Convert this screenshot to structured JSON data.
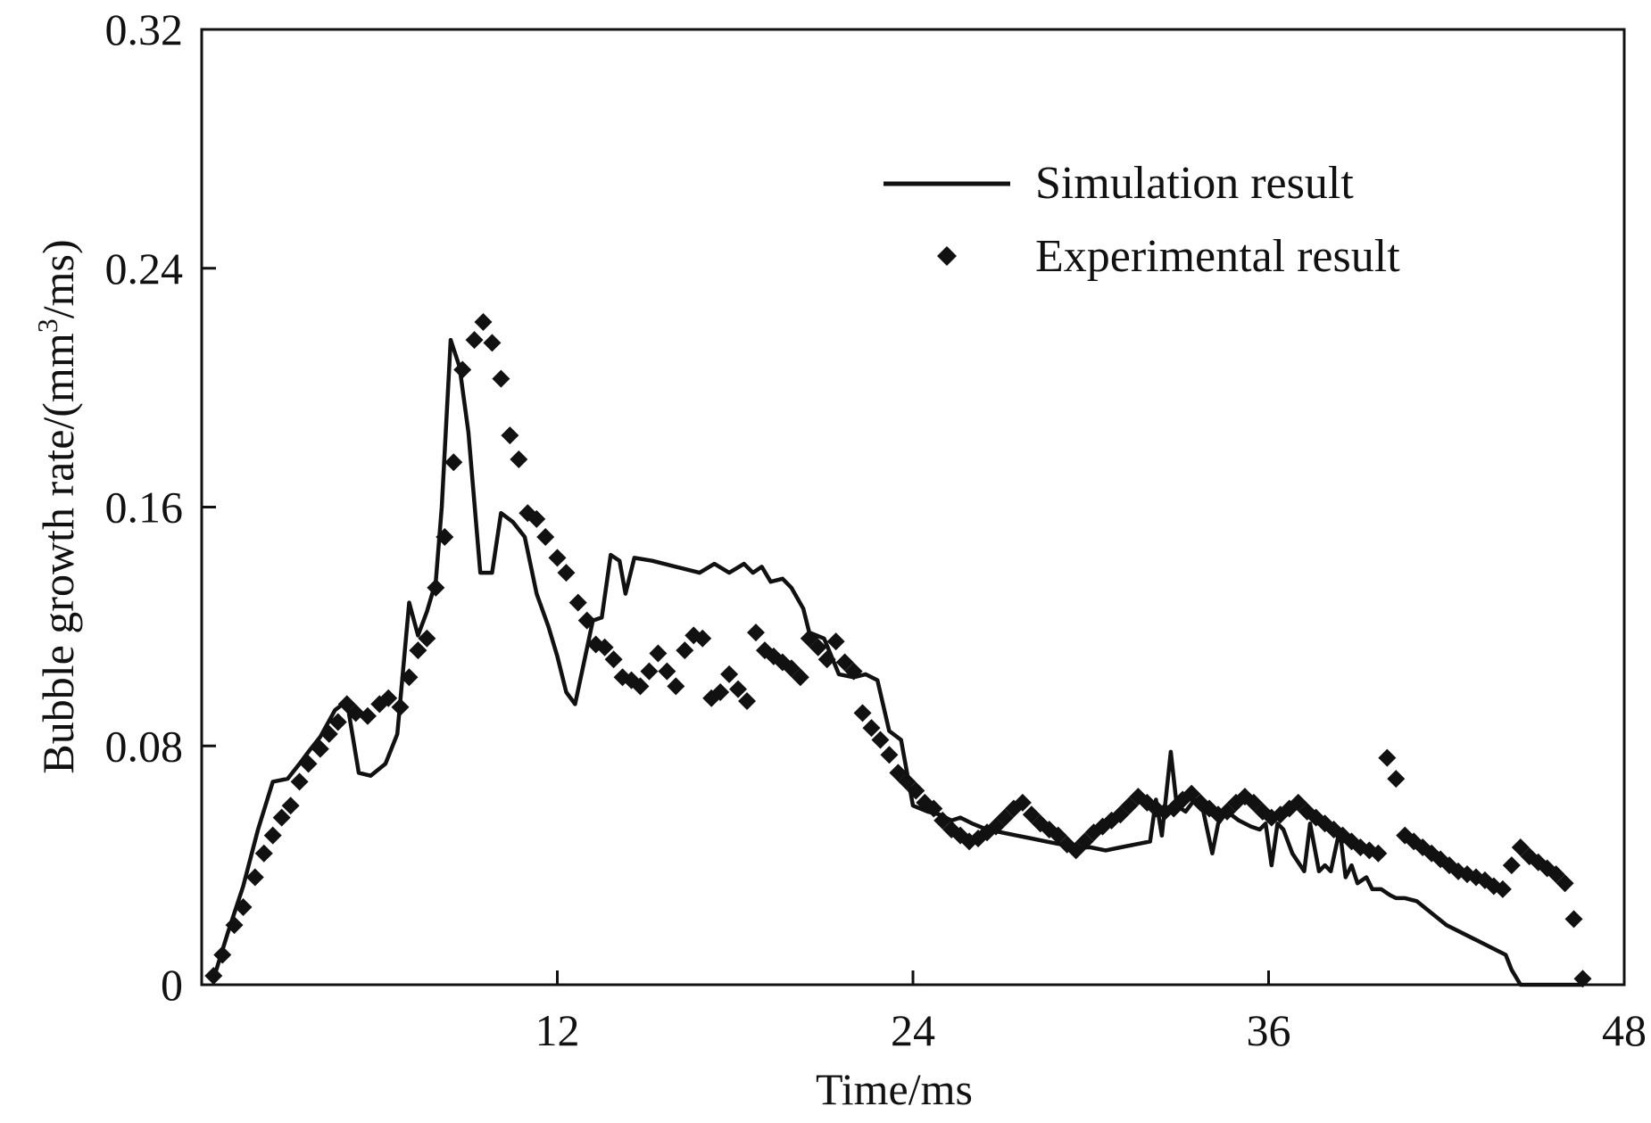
{
  "chart_data": {
    "type": "scatter",
    "title": "",
    "xlabel": "Time/ms",
    "ylabel_main": "Bubble growth rate/(mm",
    "ylabel_sup": "3",
    "ylabel_tail": "/ms)",
    "xlim": [
      0,
      48
    ],
    "ylim": [
      0,
      0.32
    ],
    "xticks": [
      12,
      24,
      36,
      48
    ],
    "xtick_labels": [
      "12",
      "24",
      "36",
      "48"
    ],
    "yticks": [
      0,
      0.08,
      0.16,
      0.24,
      0.32
    ],
    "ytick_labels": [
      "0",
      "0.08",
      "0.16",
      "0.24",
      "0.32"
    ],
    "grid": false,
    "legend_position": "top-right",
    "series": [
      {
        "name": "Simulation result",
        "kind": "line",
        "color": "#111111",
        "x": [
          0.4,
          0.9,
          1.4,
          1.9,
          2.4,
          2.9,
          3.3,
          3.6,
          4.0,
          4.5,
          4.9,
          5.3,
          5.7,
          6.2,
          6.6,
          7.0,
          7.3,
          7.6,
          7.9,
          8.1,
          8.4,
          8.7,
          9.0,
          9.4,
          9.8,
          10.1,
          10.5,
          10.9,
          11.3,
          11.7,
          12.0,
          12.3,
          12.6,
          12.9,
          13.2,
          13.5,
          13.8,
          14.1,
          14.3,
          14.6,
          15.2,
          16.0,
          16.8,
          17.3,
          17.8,
          18.3,
          18.6,
          18.9,
          19.2,
          19.6,
          19.9,
          20.3,
          20.5,
          21.0,
          21.5,
          22.0,
          22.4,
          22.8,
          23.2,
          23.6,
          24.0,
          24.5,
          24.9,
          25.3,
          25.6,
          26.0,
          26.5,
          27.0,
          27.5,
          28.0,
          28.5,
          29.0,
          29.5,
          30.0,
          30.5,
          31.0,
          31.5,
          32.0,
          32.2,
          32.4,
          32.7,
          32.9,
          33.2,
          33.5,
          33.8,
          34.1,
          34.3,
          34.6,
          35.0,
          35.4,
          35.7,
          35.9,
          36.1,
          36.3,
          36.5,
          36.8,
          37.2,
          37.4,
          37.7,
          37.9,
          38.1,
          38.4,
          38.6,
          38.8,
          39.0,
          39.3,
          39.5,
          39.8,
          40.1,
          40.3,
          40.6,
          41.0,
          42.0,
          43.0,
          44.0,
          44.2,
          44.5,
          44.8,
          45.1,
          45.4,
          45.7,
          46.0,
          46.2,
          46.4,
          46.6
        ],
        "values": [
          0.002,
          0.018,
          0.033,
          0.052,
          0.068,
          0.069,
          0.074,
          0.078,
          0.083,
          0.092,
          0.095,
          0.071,
          0.07,
          0.074,
          0.084,
          0.128,
          0.117,
          0.125,
          0.135,
          0.16,
          0.216,
          0.207,
          0.185,
          0.138,
          0.138,
          0.158,
          0.155,
          0.15,
          0.131,
          0.12,
          0.11,
          0.098,
          0.094,
          0.108,
          0.122,
          0.123,
          0.144,
          0.142,
          0.131,
          0.143,
          0.142,
          0.14,
          0.138,
          0.141,
          0.138,
          0.141,
          0.138,
          0.14,
          0.135,
          0.136,
          0.133,
          0.126,
          0.118,
          0.116,
          0.104,
          0.103,
          0.104,
          0.102,
          0.085,
          0.082,
          0.06,
          0.058,
          0.057,
          0.055,
          0.056,
          0.054,
          0.052,
          0.051,
          0.05,
          0.049,
          0.048,
          0.047,
          0.046,
          0.046,
          0.045,
          0.046,
          0.047,
          0.048,
          0.062,
          0.05,
          0.078,
          0.06,
          0.058,
          0.062,
          0.058,
          0.044,
          0.054,
          0.058,
          0.055,
          0.053,
          0.052,
          0.054,
          0.04,
          0.054,
          0.052,
          0.044,
          0.038,
          0.054,
          0.038,
          0.04,
          0.038,
          0.052,
          0.036,
          0.04,
          0.034,
          0.036,
          0.032,
          0.032,
          0.03,
          0.029,
          0.029,
          0.028,
          0.02,
          0.015,
          0.01,
          0.005,
          0.0,
          0.0,
          0.0,
          0.0,
          0.0,
          0.0,
          0.0,
          0.0,
          0.0
        ]
      },
      {
        "name": "Experimental result",
        "kind": "scatter",
        "marker": "diamond",
        "color": "#111111",
        "x": [
          0.4,
          0.7,
          1.1,
          1.4,
          1.8,
          2.1,
          2.4,
          2.7,
          3.0,
          3.3,
          3.6,
          4.0,
          4.3,
          4.6,
          4.9,
          5.2,
          5.6,
          6.0,
          6.3,
          6.7,
          7.0,
          7.3,
          7.6,
          7.9,
          8.2,
          8.5,
          8.8,
          9.2,
          9.5,
          9.8,
          10.1,
          10.4,
          10.7,
          11.0,
          11.3,
          11.6,
          12.0,
          12.3,
          12.7,
          13.0,
          13.3,
          13.6,
          13.9,
          14.2,
          14.5,
          14.8,
          15.1,
          15.4,
          15.7,
          16.0,
          16.3,
          16.6,
          16.9,
          17.2,
          17.5,
          17.8,
          18.1,
          18.4,
          18.7,
          19.0,
          19.3,
          19.6,
          19.9,
          20.2,
          20.5,
          20.8,
          21.1,
          21.4,
          21.7,
          22.0,
          22.3,
          22.6,
          22.9,
          23.2,
          23.5,
          23.8,
          24.1,
          24.4,
          24.7,
          25.0,
          25.3,
          25.6,
          25.9,
          26.2,
          26.5,
          26.8,
          27.1,
          27.4,
          27.7,
          28.0,
          28.3,
          28.6,
          28.9,
          29.2,
          29.5,
          29.8,
          30.1,
          30.4,
          30.7,
          31.0,
          31.3,
          31.6,
          31.9,
          32.2,
          32.5,
          32.8,
          33.1,
          33.4,
          33.7,
          34.0,
          34.3,
          34.6,
          34.9,
          35.2,
          35.5,
          35.8,
          36.1,
          36.4,
          36.7,
          37.0,
          37.3,
          37.6,
          37.9,
          38.2,
          38.5,
          38.8,
          39.1,
          39.4,
          39.7,
          40.0,
          40.3,
          40.6,
          40.9,
          41.2,
          41.5,
          41.8,
          42.1,
          42.4,
          42.7,
          43.0,
          43.3,
          43.6,
          43.9,
          44.2,
          44.5,
          44.8,
          45.1,
          45.4,
          45.7,
          46.0,
          46.3,
          46.6
        ],
        "values": [
          0.003,
          0.01,
          0.02,
          0.026,
          0.036,
          0.044,
          0.05,
          0.056,
          0.06,
          0.068,
          0.074,
          0.079,
          0.084,
          0.088,
          0.094,
          0.091,
          0.09,
          0.094,
          0.096,
          0.093,
          0.103,
          0.112,
          0.116,
          0.133,
          0.15,
          0.175,
          0.206,
          0.216,
          0.222,
          0.215,
          0.203,
          0.184,
          0.176,
          0.158,
          0.156,
          0.15,
          0.143,
          0.138,
          0.128,
          0.122,
          0.114,
          0.113,
          0.109,
          0.103,
          0.102,
          0.1,
          0.105,
          0.111,
          0.105,
          0.1,
          0.112,
          0.117,
          0.116,
          0.096,
          0.098,
          0.104,
          0.099,
          0.095,
          0.118,
          0.112,
          0.11,
          0.108,
          0.106,
          0.103,
          0.116,
          0.113,
          0.109,
          0.115,
          0.108,
          0.105,
          0.091,
          0.086,
          0.082,
          0.077,
          0.071,
          0.068,
          0.065,
          0.061,
          0.059,
          0.055,
          0.052,
          0.05,
          0.048,
          0.049,
          0.051,
          0.053,
          0.056,
          0.059,
          0.061,
          0.057,
          0.054,
          0.052,
          0.05,
          0.047,
          0.045,
          0.048,
          0.051,
          0.053,
          0.055,
          0.057,
          0.06,
          0.063,
          0.061,
          0.059,
          0.058,
          0.059,
          0.062,
          0.064,
          0.061,
          0.059,
          0.057,
          0.058,
          0.061,
          0.063,
          0.061,
          0.058,
          0.056,
          0.057,
          0.059,
          0.061,
          0.058,
          0.056,
          0.054,
          0.052,
          0.05,
          0.048,
          0.046,
          0.045,
          0.044,
          0.076,
          0.069,
          0.05,
          0.048,
          0.046,
          0.044,
          0.042,
          0.04,
          0.038,
          0.037,
          0.036,
          0.035,
          0.033,
          0.032,
          0.04,
          0.046,
          0.043,
          0.041,
          0.039,
          0.037,
          0.034,
          0.022,
          0.002
        ]
      }
    ]
  }
}
